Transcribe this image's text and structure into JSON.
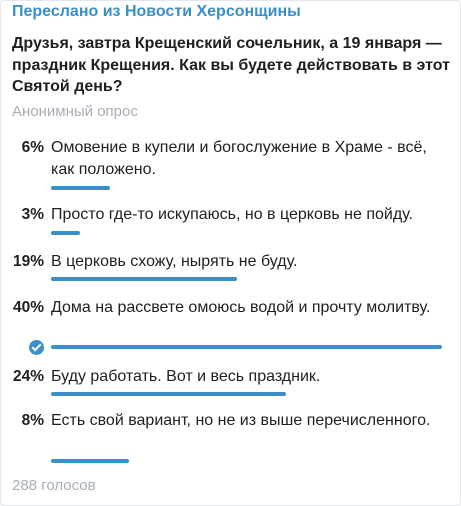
{
  "forwarded_from": "Переслано из Новости Херсонщины",
  "question": "Друзья, завтра Крещенский сочельник, а 19 января — праздник Крещения. Как вы будете действовать в этот Святой день?",
  "poll_type": "Анонимный опрос",
  "options": [
    {
      "percent_label": "6%",
      "percent": 6,
      "text": "Омовение в купели и богослужение в Храме  - всё, как положено.",
      "chosen": false
    },
    {
      "percent_label": "3%",
      "percent": 3,
      "text": "Просто где-то искупаюсь, но в церковь не пойду.",
      "chosen": false
    },
    {
      "percent_label": "19%",
      "percent": 19,
      "text": "В церковь схожу, нырять не буду.",
      "chosen": false
    },
    {
      "percent_label": "40%",
      "percent": 40,
      "text": "Дома на рассвете омоюсь водой и прочту молитву.",
      "chosen": true
    },
    {
      "percent_label": "24%",
      "percent": 24,
      "text": "Буду работать. Вот и весь праздник.",
      "chosen": false
    },
    {
      "percent_label": "8%",
      "percent": 8,
      "text": "Есть свой вариант,  но не из выше перечисленного.",
      "chosen": false
    }
  ],
  "votes": "288 голосов",
  "colors": {
    "accent": "#3a8fc8",
    "muted": "#a7aeb5",
    "text": "#1f1f1f"
  }
}
